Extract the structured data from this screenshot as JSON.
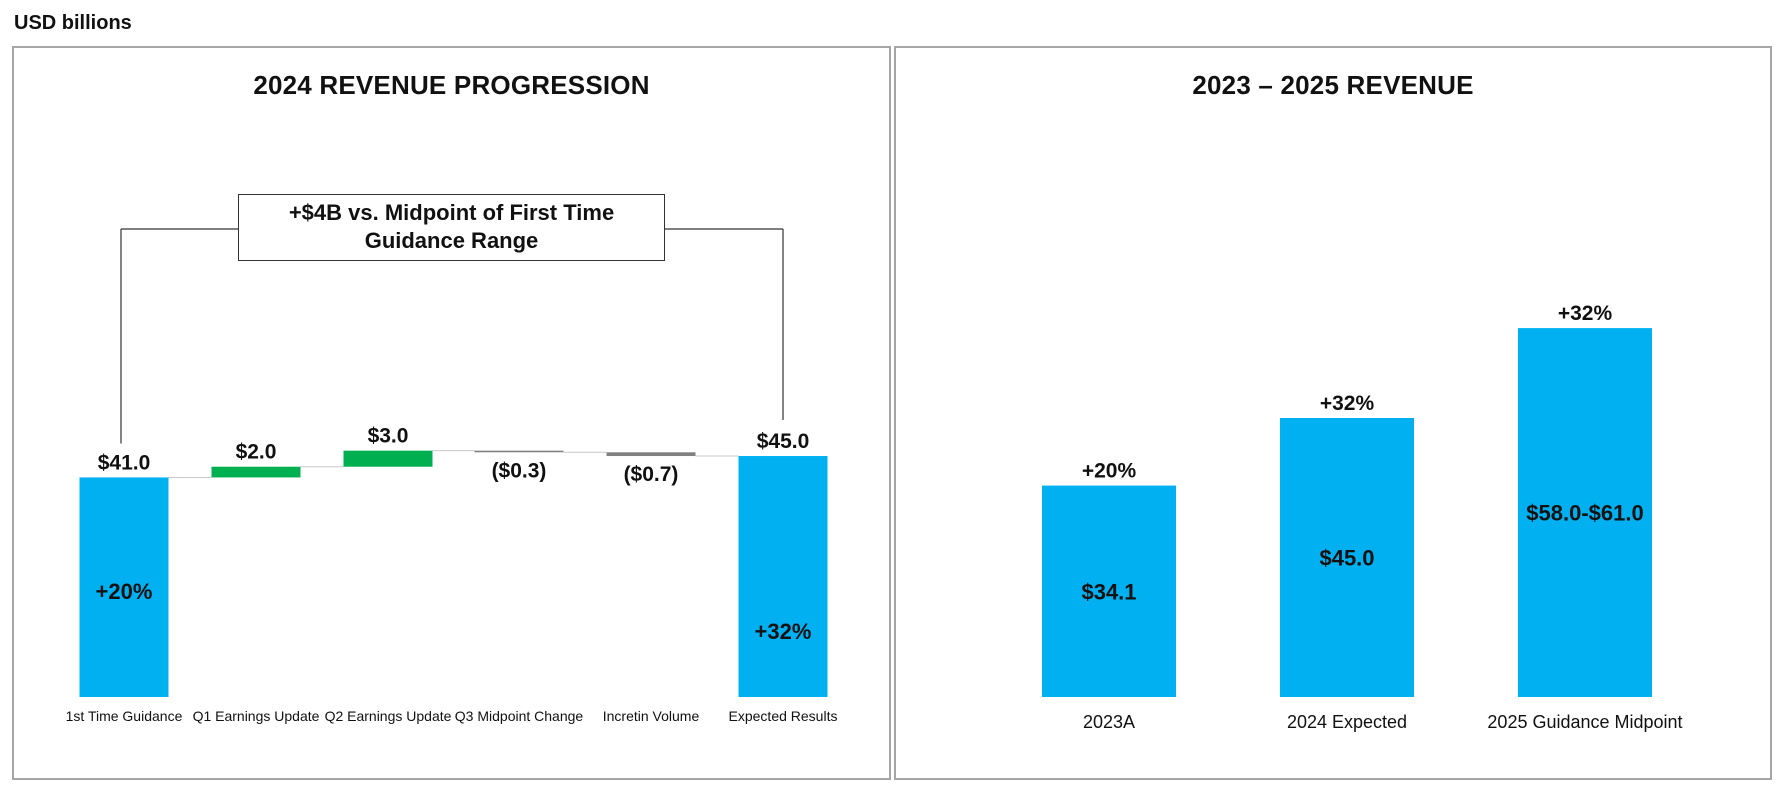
{
  "unit_label": "USD billions",
  "colors": {
    "blue": "#00b0f0",
    "green": "#00b050",
    "gray": "#808080",
    "frame": "#a6a6a6"
  },
  "chart_data": [
    {
      "type": "bar",
      "subtype": "waterfall",
      "title": "2024 REVENUE PROGRESSION",
      "categories": [
        "1st Time Guidance",
        "Q1 Earnings Update",
        "Q2 Earnings Update",
        "Q3 Midpoint Change",
        "Incretin Volume",
        "Expected Results"
      ],
      "values": [
        41.0,
        2.0,
        3.0,
        -0.3,
        -0.7,
        45.0
      ],
      "kinds": [
        "total",
        "increase",
        "increase",
        "decrease",
        "decrease",
        "total"
      ],
      "value_labels": [
        "$41.0",
        "$2.0",
        "$3.0",
        "($0.3)",
        "($0.7)",
        "$45.0"
      ],
      "inner_labels": [
        "+20%",
        "",
        "",
        "",
        "",
        "+32%"
      ],
      "annotation": {
        "line1": "+$4B vs. Midpoint of First Time",
        "line2": "Guidance Range"
      },
      "ylim": [
        0,
        48
      ]
    },
    {
      "type": "bar",
      "title": "2023 – 2025 REVENUE",
      "categories": [
        "2023A",
        "2024 Expected",
        "2025 Guidance Midpoint"
      ],
      "values": [
        34.1,
        45.0,
        59.5
      ],
      "value_labels": [
        "$34.1",
        "$45.0",
        "$58.0-$61.0"
      ],
      "growth_labels": [
        "+20%",
        "+32%",
        "+32%"
      ],
      "ylim": [
        0,
        62
      ]
    }
  ]
}
